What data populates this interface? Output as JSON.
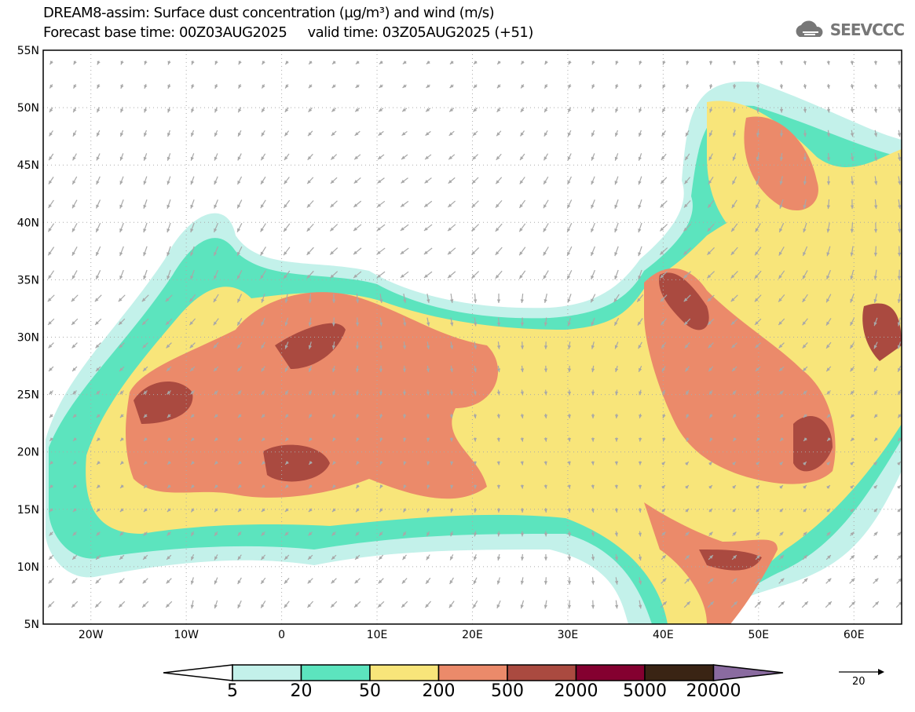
{
  "title_line1": "DREAM8-assim: Surface dust concentration (µg/m³) and wind (m/s)",
  "title_line2": "Forecast base time: 00Z03AUG2025     valid time: 03Z05AUG2025 (+51)",
  "logo_text": "SEEVCCC",
  "lat_labels": [
    "55N",
    "50N",
    "45N",
    "40N",
    "35N",
    "30N",
    "25N",
    "20N",
    "15N",
    "10N",
    "5N"
  ],
  "lon_labels": [
    "20W",
    "10W",
    "0",
    "10E",
    "20E",
    "30E",
    "40E",
    "50E",
    "60E"
  ],
  "colorbar": {
    "labels": [
      "5",
      "20",
      "50",
      "200",
      "500",
      "2000",
      "5000",
      "20000"
    ],
    "colors": [
      "#ffffff",
      "#c3f1ea",
      "#5ce4be",
      "#f8e57a",
      "#eb8a6a",
      "#aa4a40",
      "#840030",
      "#3a2414",
      "#8a6ba0"
    ]
  },
  "wind_reference": {
    "value": "20"
  }
}
